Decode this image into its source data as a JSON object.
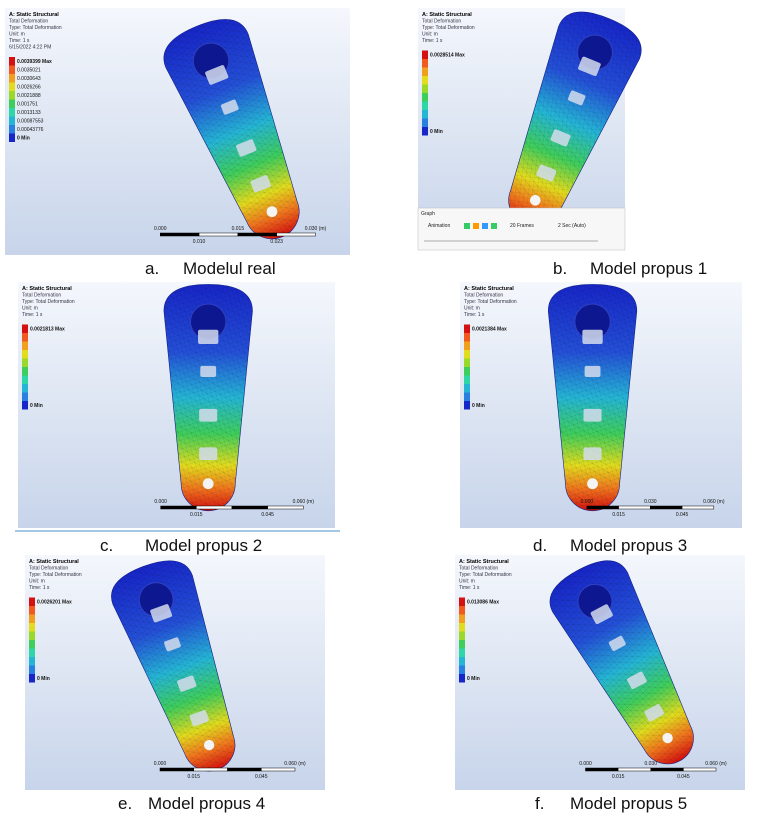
{
  "panels": [
    {
      "letter": "a.",
      "caption": "Modelul real",
      "header": [
        "A: Static Structural",
        "Total Deformation",
        "Type: Total Deformation",
        "Unit: m",
        "Time: 1 s",
        "6/15/2022 4:22 PM"
      ],
      "legend": [
        "0.0039399 Max",
        "0.0035021",
        "0.0030643",
        "0.0026266",
        "0.0021888",
        "0.001751",
        "0.0013133",
        "0.00087553",
        "0.00043776",
        "0 Min"
      ],
      "scale_top": [
        "0.000",
        "0.015",
        "0.030 (m)"
      ],
      "scale_bottom": [
        "0.010",
        "0.023"
      ]
    },
    {
      "letter": "b.",
      "caption": "Model propus 1",
      "header": [
        "A: Static Structural",
        "Total Deformation",
        "Type: Total Deformation",
        "Unit: m",
        "Time: 1 s"
      ],
      "legend": [
        "0.0028514 Max",
        "0 Min"
      ],
      "toolbar": [
        "Graph",
        "Animation",
        "20 Frames",
        "2 Sec (Auto)"
      ]
    },
    {
      "letter": "c.",
      "caption": "Model propus 2",
      "header": [
        "A: Static Structural",
        "Total Deformation",
        "Type: Total Deformation",
        "Unit: m",
        "Time: 1 s"
      ],
      "legend": [
        "0.0021813 Max",
        "0 Min"
      ],
      "scale_top": [
        "0.000",
        "0.060 (m)"
      ],
      "scale_bottom": [
        "0.015",
        "0.045"
      ]
    },
    {
      "letter": "d.",
      "caption": "Model propus 3",
      "header": [
        "A: Static Structural",
        "Total Deformation",
        "Type: Total Deformation",
        "Unit: m",
        "Time: 1 s"
      ],
      "legend": [
        "0.0021384 Max",
        "0 Min"
      ],
      "scale_top": [
        "0.000",
        "0.030",
        "0.060 (m)"
      ],
      "scale_bottom": [
        "0.015",
        "0.045"
      ]
    },
    {
      "letter": "e.",
      "caption": "Model propus 4",
      "header": [
        "A: Static Structural",
        "Total Deformation",
        "Type: Total Deformation",
        "Unit: m",
        "Time: 1 s"
      ],
      "legend": [
        "0.0026201 Max",
        "0 Min"
      ],
      "scale_top": [
        "0.000",
        "0.060 (m)"
      ],
      "scale_bottom": [
        "0.015",
        "0.045"
      ]
    },
    {
      "letter": "f.",
      "caption": "Model propus 5",
      "header": [
        "A: Static Structural",
        "Total Deformation",
        "Type: Total Deformation",
        "Unit: m",
        "Time: 1 s"
      ],
      "legend": [
        "0.013086 Max",
        "0 Min"
      ],
      "scale_top": [
        "0.000",
        "0.030",
        "0.060 (m)"
      ],
      "scale_bottom": [
        "0.015",
        "0.045"
      ]
    }
  ]
}
